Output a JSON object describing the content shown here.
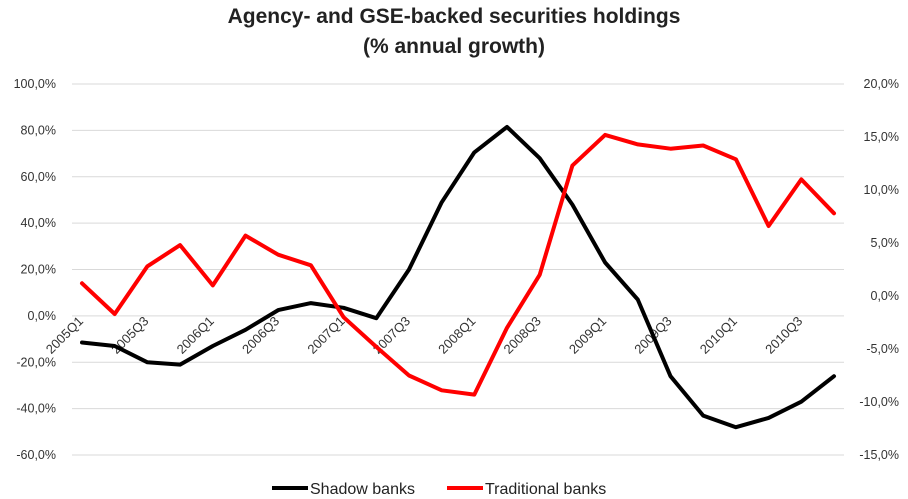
{
  "chart_data": {
    "type": "line",
    "title": "Agency- and GSE-backed securities holdings",
    "subtitle": "(% annual growth)",
    "x": [
      "2005Q1",
      "2005Q2",
      "2005Q3",
      "2005Q4",
      "2006Q1",
      "2006Q2",
      "2006Q3",
      "2006Q4",
      "2007Q1",
      "2007Q2",
      "2007Q3",
      "2007Q4",
      "2008Q1",
      "2008Q2",
      "2008Q3",
      "2008Q4",
      "2009Q1",
      "2009Q2",
      "2009Q3",
      "2009Q4",
      "2010Q1",
      "2010Q2",
      "2010Q3",
      "2010Q4"
    ],
    "x_tick_labels": [
      "2005Q1",
      "2005Q3",
      "2006Q1",
      "2006Q3",
      "2007Q1",
      "2007Q3",
      "2008Q1",
      "2008Q3",
      "2009Q1",
      "2009Q3",
      "2010Q1",
      "2010Q3"
    ],
    "left_axis": {
      "ylim": [
        -60,
        100
      ],
      "ticks": [
        "100,0%",
        "80,0%",
        "60,0%",
        "40,0%",
        "20,0%",
        "0,0%",
        "-20,0%",
        "-40,0%",
        "-60,0%"
      ]
    },
    "right_axis": {
      "ylim": [
        -15,
        20
      ],
      "ticks": [
        "20,0%",
        "15,0%",
        "10,0%",
        "5,0%",
        "0,0%",
        "-5,0%",
        "-10,0%",
        "-15,0%"
      ]
    },
    "series": [
      {
        "name": "Shadow banks",
        "axis": "left",
        "color": "#000000",
        "values": [
          -11.5,
          -13,
          -20,
          -21,
          -13,
          -6,
          2.5,
          5.5,
          3.5,
          -1,
          20,
          49,
          70.5,
          81.5,
          68,
          48,
          23,
          7,
          -26,
          -43,
          -48,
          -44,
          -37,
          -26
        ]
      },
      {
        "name": "Traditional banks",
        "axis": "right",
        "color": "#ff0000",
        "values": [
          1.2,
          -1.7,
          2.8,
          4.8,
          1.0,
          5.7,
          3.9,
          2.9,
          -2.0,
          -4.8,
          -7.5,
          -8.9,
          -9.3,
          -3.0,
          2.0,
          12.3,
          15.2,
          14.3,
          13.9,
          14.2,
          12.9,
          6.6,
          11.0,
          7.8
        ]
      }
    ],
    "grid": "horizontal",
    "legend_position": "bottom"
  }
}
